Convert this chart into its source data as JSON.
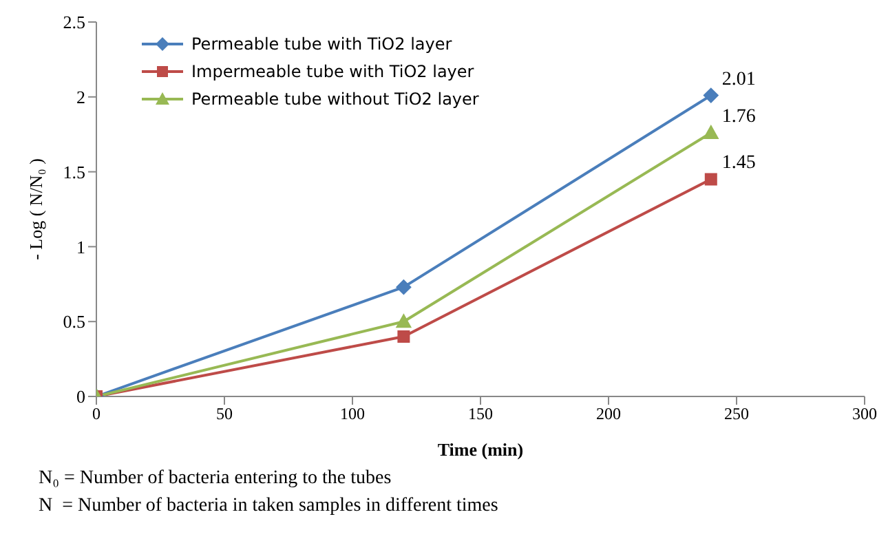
{
  "chart_data": {
    "type": "line",
    "xlabel": "Time (min)",
    "ylabel": "- Log ( N/N₀ )",
    "x": [
      0,
      120,
      240
    ],
    "series": [
      {
        "name": "Permeable tube with TiO2 layer",
        "color": "#4a7ebb",
        "marker": "diamond",
        "values": [
          0,
          0.73,
          2.01
        ],
        "value_labels": [
          null,
          null,
          "2.01"
        ]
      },
      {
        "name": "Impermeable tube with TiO2 layer",
        "color": "#be4b48",
        "marker": "square",
        "values": [
          0,
          0.4,
          1.45
        ],
        "value_labels": [
          null,
          null,
          "1.45"
        ]
      },
      {
        "name": "Permeable tube without TiO2 layer",
        "color": "#98b954",
        "marker": "triangle",
        "values": [
          0,
          0.5,
          1.76
        ],
        "value_labels": [
          null,
          null,
          "1.76"
        ]
      }
    ],
    "xlim": [
      0,
      300
    ],
    "xticks": [
      0,
      50,
      100,
      150,
      200,
      250,
      300
    ],
    "ylim": [
      0,
      2.5
    ],
    "yticks": [
      0,
      0.5,
      1,
      1.5,
      2,
      2.5
    ],
    "grid": false,
    "legend": "top left",
    "annotations": [
      "N₀ = Number of bacteria entering to the tubes",
      "N  = Number of bacteria in taken samples in different times"
    ]
  }
}
